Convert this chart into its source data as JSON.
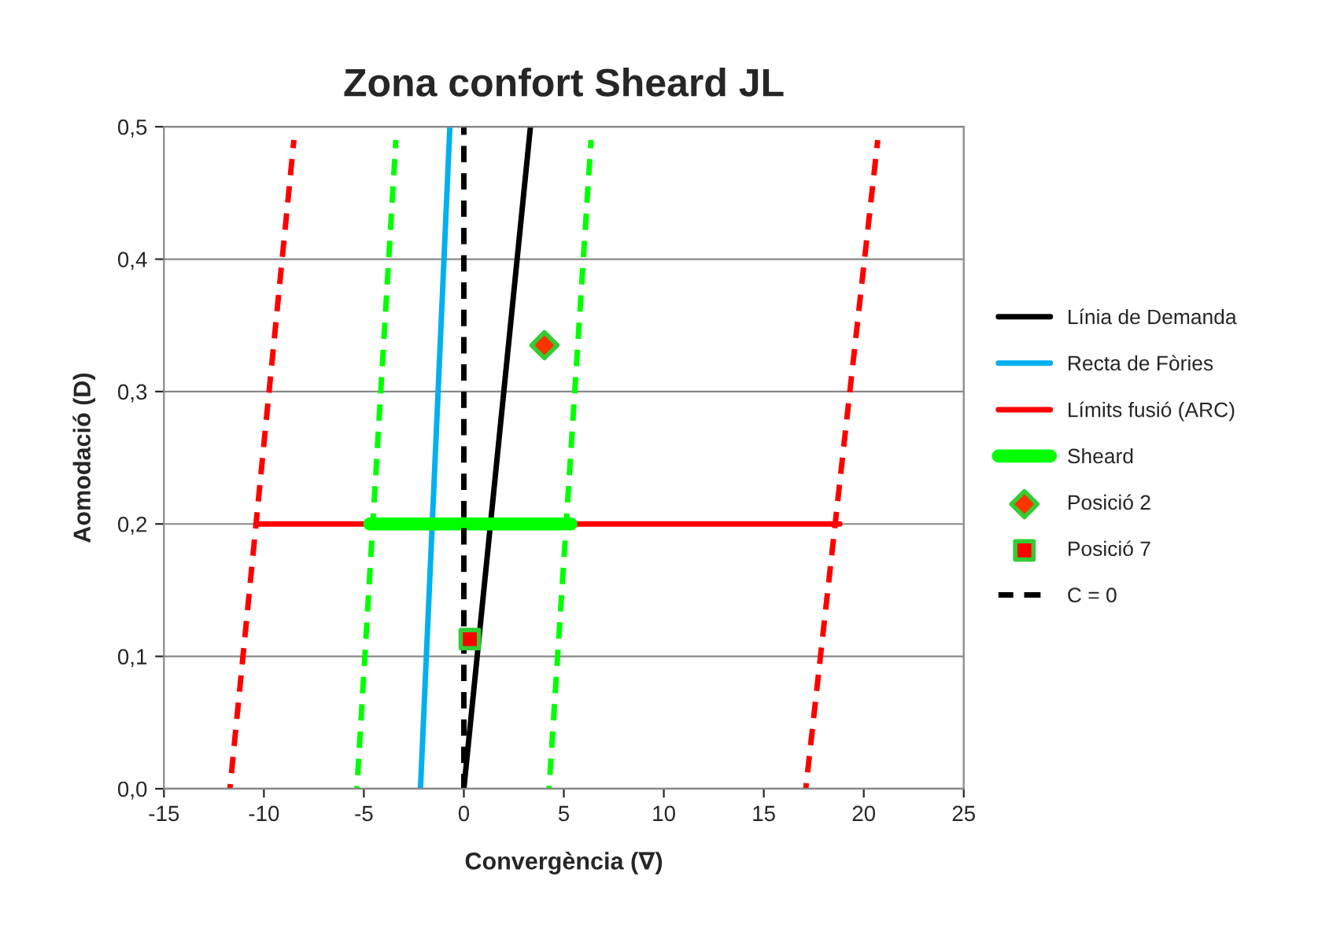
{
  "chart_data": {
    "type": "line",
    "title": "Zona confort Sheard JL",
    "xlabel": "Convergència (∇)",
    "ylabel": "Aomodació (D)",
    "xlim": [
      -15,
      25
    ],
    "xticks": [
      -15,
      -10,
      -5,
      0,
      5,
      10,
      15,
      20,
      25
    ],
    "ylim": [
      0,
      0.5
    ],
    "yticks": [
      {
        "value": 0,
        "label": "0,0"
      },
      {
        "value": 0.1,
        "label": "0,1"
      },
      {
        "value": 0.2,
        "label": "0,2"
      },
      {
        "value": 0.3,
        "label": "0,3"
      },
      {
        "value": 0.4,
        "label": "0,4"
      },
      {
        "value": 0.5,
        "label": "0,5"
      }
    ],
    "grid": "y",
    "legend": "right",
    "series": [
      {
        "name": "Línia de Demanda",
        "color": "#000000",
        "x": [
          0,
          3.33
        ],
        "values": [
          0,
          0.5
        ]
      },
      {
        "name": "Recta de Fòries",
        "color": "#00b0f0",
        "x": [
          -2.17,
          -0.7
        ],
        "values": [
          0,
          0.5
        ]
      },
      {
        "name": "Límits fusió (ARC)",
        "color": "#ff0000",
        "x": [
          -10.4,
          18.8
        ],
        "values": [
          0.2,
          0.2
        ]
      },
      {
        "color": "#ff0000",
        "line_style": "dashed",
        "x": [
          -11.7,
          -8.5
        ],
        "values": [
          0,
          0.49
        ]
      },
      {
        "color": "#ff0000",
        "line_style": "dashed",
        "x": [
          17.1,
          20.7
        ],
        "values": [
          0,
          0.49
        ]
      },
      {
        "name": "Sheard",
        "color": "#00ff00",
        "x": [
          -4.7,
          5.35
        ],
        "values": [
          0.2,
          0.2
        ]
      },
      {
        "color": "#00ff00",
        "line_style": "dashed",
        "x": [
          -5.35,
          -3.4
        ],
        "values": [
          0,
          0.49
        ]
      },
      {
        "color": "#00ff00",
        "line_style": "dashed",
        "x": [
          4.26,
          6.36
        ],
        "values": [
          0,
          0.49
        ]
      },
      {
        "name": "Posició 2",
        "type": "scatter",
        "marker": "diamond",
        "color": "#ff3300",
        "x": [
          4.03
        ],
        "values": [
          0.335
        ]
      },
      {
        "name": "Posició 7",
        "type": "scatter",
        "marker": "square",
        "color": "#ff0000",
        "x": [
          0.3
        ],
        "values": [
          0.113
        ]
      },
      {
        "name": "C = 0",
        "color": "#000000",
        "line_style": "dashed",
        "x": [
          0,
          0
        ],
        "values": [
          0,
          0.5
        ]
      }
    ]
  }
}
